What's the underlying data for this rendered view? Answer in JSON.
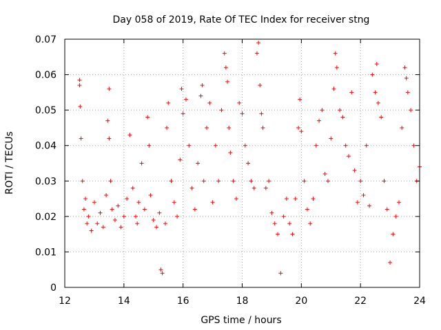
{
  "chart_data": {
    "type": "scatter",
    "title": "Day 058 of 2019, Rate Of TEC Index for receiver stng",
    "xlabel": "GPS time / hours",
    "ylabel": "ROTI / TECUs",
    "xlim": [
      12,
      24
    ],
    "ylim": [
      0,
      0.07
    ],
    "x_ticks": [
      12,
      14,
      16,
      18,
      20,
      22,
      24
    ],
    "x_tick_labels": [
      "12",
      "14",
      "16",
      "18",
      "20",
      "22",
      "24"
    ],
    "y_ticks": [
      0,
      0.01,
      0.02,
      0.03,
      0.04,
      0.05,
      0.06,
      0.07
    ],
    "y_tick_labels": [
      "0",
      "0.01",
      "0.02",
      "0.03",
      "0.04",
      "0.05",
      "0.06",
      "0.07"
    ],
    "grid": true,
    "marker": "plus",
    "color": "#ff0000",
    "series": [
      {
        "name": "ROTI",
        "x": [
          12.5,
          12.5,
          12.52,
          12.55,
          12.6,
          12.65,
          12.7,
          12.75,
          12.8,
          12.9,
          13.0,
          13.1,
          13.2,
          13.3,
          13.4,
          13.45,
          13.5,
          13.5,
          13.55,
          13.6,
          13.7,
          13.8,
          13.9,
          14.0,
          14.1,
          14.2,
          14.3,
          14.4,
          14.45,
          14.5,
          14.6,
          14.7,
          14.8,
          14.85,
          14.9,
          15.0,
          15.1,
          15.2,
          15.25,
          15.3,
          15.4,
          15.45,
          15.5,
          15.6,
          15.7,
          15.8,
          15.9,
          15.95,
          16.0,
          16.1,
          16.2,
          16.3,
          16.4,
          16.5,
          16.6,
          16.65,
          16.7,
          16.8,
          16.9,
          17.0,
          17.1,
          17.2,
          17.3,
          17.4,
          17.45,
          17.5,
          17.55,
          17.6,
          17.7,
          17.8,
          17.9,
          18.0,
          18.1,
          18.2,
          18.3,
          18.4,
          18.5,
          18.55,
          18.6,
          18.65,
          18.7,
          18.8,
          18.9,
          19.0,
          19.1,
          19.2,
          19.3,
          19.4,
          19.5,
          19.6,
          19.7,
          19.8,
          19.9,
          19.95,
          20.0,
          20.1,
          20.2,
          20.3,
          20.4,
          20.5,
          20.6,
          20.7,
          20.8,
          20.9,
          21.0,
          21.1,
          21.15,
          21.2,
          21.3,
          21.4,
          21.5,
          21.6,
          21.7,
          21.8,
          21.9,
          22.0,
          22.1,
          22.2,
          22.3,
          22.4,
          22.5,
          22.55,
          22.6,
          22.7,
          22.8,
          22.9,
          23.0,
          23.1,
          23.2,
          23.3,
          23.4,
          23.5,
          23.55,
          23.6,
          23.7,
          23.8,
          23.9,
          24.0
        ],
        "y": [
          0.057,
          0.0585,
          0.051,
          0.042,
          0.03,
          0.022,
          0.025,
          0.018,
          0.02,
          0.016,
          0.024,
          0.018,
          0.021,
          0.017,
          0.026,
          0.047,
          0.056,
          0.042,
          0.03,
          0.022,
          0.019,
          0.023,
          0.017,
          0.02,
          0.025,
          0.043,
          0.028,
          0.02,
          0.018,
          0.024,
          0.035,
          0.022,
          0.048,
          0.04,
          0.026,
          0.019,
          0.017,
          0.021,
          0.005,
          0.004,
          0.018,
          0.045,
          0.052,
          0.03,
          0.024,
          0.02,
          0.036,
          0.056,
          0.049,
          0.053,
          0.04,
          0.028,
          0.022,
          0.035,
          0.054,
          0.057,
          0.03,
          0.045,
          0.052,
          0.024,
          0.04,
          0.03,
          0.05,
          0.066,
          0.062,
          0.058,
          0.045,
          0.038,
          0.03,
          0.025,
          0.052,
          0.049,
          0.04,
          0.035,
          0.03,
          0.028,
          0.066,
          0.069,
          0.057,
          0.049,
          0.045,
          0.028,
          0.03,
          0.021,
          0.018,
          0.015,
          0.004,
          0.02,
          0.025,
          0.018,
          0.015,
          0.025,
          0.045,
          0.053,
          0.044,
          0.03,
          0.022,
          0.018,
          0.025,
          0.04,
          0.047,
          0.05,
          0.032,
          0.03,
          0.042,
          0.056,
          0.066,
          0.062,
          0.05,
          0.048,
          0.04,
          0.037,
          0.055,
          0.033,
          0.024,
          0.03,
          0.026,
          0.04,
          0.023,
          0.06,
          0.055,
          0.063,
          0.052,
          0.048,
          0.03,
          0.022,
          0.007,
          0.015,
          0.02,
          0.024,
          0.045,
          0.062,
          0.059,
          0.055,
          0.05,
          0.04,
          0.03,
          0.034
        ]
      }
    ]
  }
}
